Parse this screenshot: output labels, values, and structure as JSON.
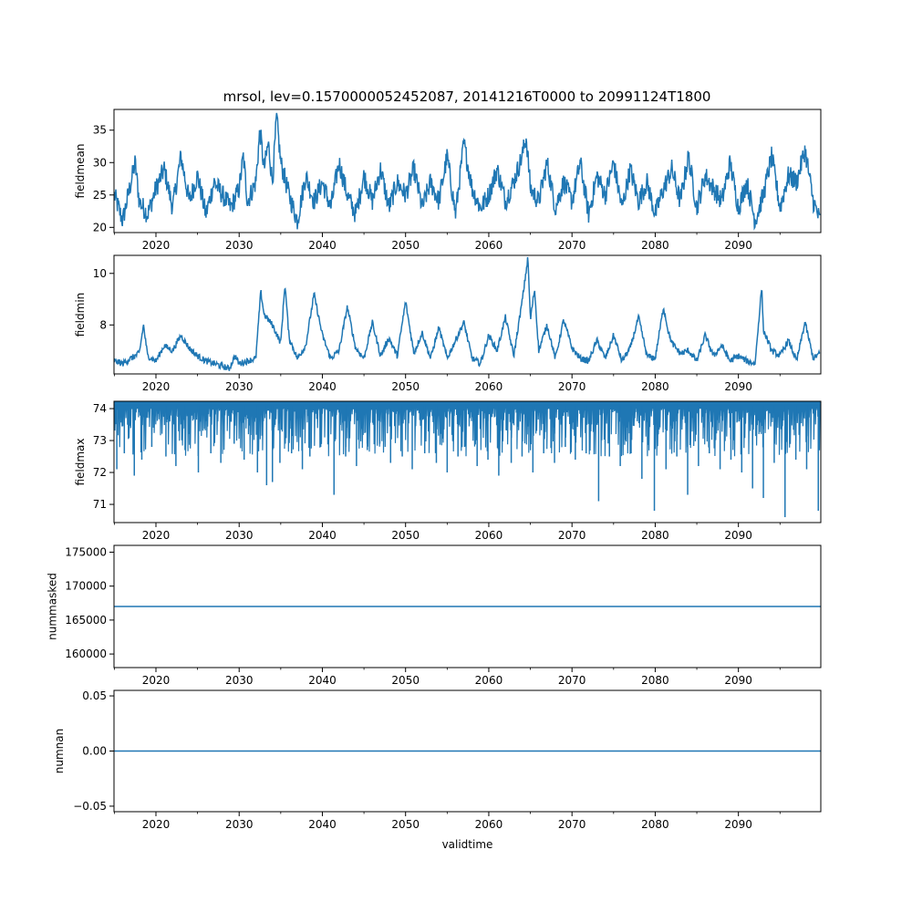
{
  "figure_title": "mrsol, lev=0.1570000052452087, 20141216T0000 to 20991124T1800",
  "colors": {
    "series": "#1f77b4",
    "axis": "#000000",
    "background": "#ffffff"
  },
  "chart_data": [
    {
      "type": "line",
      "title": "mrsol, lev=0.1570000052452087, 20141216T0000 to 20991124T1800",
      "ylabel": "fieldmean",
      "xlabel": "",
      "xlim": [
        2014.96,
        2099.9
      ],
      "ylim": [
        19.2,
        38.2
      ],
      "xticks": [
        2020,
        2030,
        2040,
        2050,
        2060,
        2070,
        2080,
        2090
      ],
      "xtick_labels": [
        "2020",
        "2030",
        "2040",
        "2050",
        "2060",
        "2070",
        "2080",
        "2090"
      ],
      "yticks": [
        20,
        25,
        30,
        35
      ],
      "ytick_labels": [
        "20",
        "25",
        "30",
        "35"
      ],
      "series": [
        {
          "name": "fieldmean",
          "x": [
            2015.0,
            2016.0,
            2017.0,
            2017.5,
            2018.0,
            2019.0,
            2020.0,
            2021.0,
            2022.0,
            2023.0,
            2024.0,
            2025.0,
            2026.0,
            2027.0,
            2028.0,
            2029.0,
            2030.0,
            2030.5,
            2031.0,
            2032.0,
            2032.5,
            2033.0,
            2033.5,
            2034.0,
            2034.5,
            2035.0,
            2036.0,
            2037.0,
            2038.0,
            2039.0,
            2040.0,
            2041.0,
            2042.0,
            2043.0,
            2044.0,
            2045.0,
            2046.0,
            2047.0,
            2048.0,
            2049.0,
            2050.0,
            2051.0,
            2052.0,
            2053.0,
            2054.0,
            2055.0,
            2056.0,
            2057.0,
            2058.0,
            2059.0,
            2060.0,
            2061.0,
            2062.0,
            2063.0,
            2064.0,
            2064.5,
            2065.0,
            2066.0,
            2067.0,
            2068.0,
            2069.0,
            2070.0,
            2071.0,
            2072.0,
            2073.0,
            2074.0,
            2075.0,
            2076.0,
            2077.0,
            2078.0,
            2079.0,
            2080.0,
            2081.0,
            2082.0,
            2083.0,
            2084.0,
            2085.0,
            2086.0,
            2087.0,
            2088.0,
            2089.0,
            2090.0,
            2091.0,
            2092.0,
            2093.0,
            2094.0,
            2095.0,
            2096.0,
            2097.0,
            2098.0,
            2099.0,
            2099.8
          ],
          "values": [
            25,
            21,
            27,
            30,
            24,
            22,
            26,
            29,
            23,
            31,
            24,
            28,
            22,
            27,
            25,
            23,
            26,
            31,
            24,
            27,
            35,
            29,
            33,
            27,
            37,
            30,
            25,
            21,
            28,
            24,
            27,
            23,
            30,
            25,
            22,
            28,
            24,
            29,
            23,
            27,
            25,
            29,
            23,
            27,
            24,
            31,
            22,
            33,
            26,
            23,
            25,
            29,
            24,
            27,
            31,
            34,
            26,
            24,
            30,
            23,
            27,
            24,
            30,
            22,
            28,
            25,
            30,
            23,
            29,
            24,
            27,
            22,
            26,
            29,
            24,
            31,
            23,
            28,
            26,
            24,
            30,
            23,
            27,
            21,
            25,
            31,
            23,
            28,
            27,
            32,
            24,
            21
          ]
        }
      ]
    },
    {
      "type": "line",
      "ylabel": "fieldmin",
      "xlabel": "",
      "xlim": [
        2014.96,
        2099.9
      ],
      "ylim": [
        6.1,
        10.7
      ],
      "xticks": [
        2020,
        2030,
        2040,
        2050,
        2060,
        2070,
        2080,
        2090
      ],
      "xtick_labels": [
        "2020",
        "2030",
        "2040",
        "2050",
        "2060",
        "2070",
        "2080",
        "2090"
      ],
      "yticks": [
        8,
        10
      ],
      "ytick_labels": [
        "8",
        "10"
      ],
      "series": [
        {
          "name": "fieldmin",
          "x": [
            2015.0,
            2016.0,
            2017.0,
            2018.0,
            2018.5,
            2019.0,
            2020.0,
            2021.0,
            2022.0,
            2023.0,
            2024.0,
            2025.0,
            2026.0,
            2027.0,
            2028.0,
            2028.8,
            2029.5,
            2030.0,
            2031.0,
            2032.0,
            2032.6,
            2033.0,
            2034.0,
            2035.0,
            2035.5,
            2036.0,
            2037.0,
            2038.0,
            2039.0,
            2040.0,
            2041.0,
            2042.0,
            2043.0,
            2044.0,
            2045.0,
            2046.0,
            2047.0,
            2048.0,
            2049.0,
            2050.0,
            2051.0,
            2052.0,
            2053.0,
            2054.0,
            2055.0,
            2056.0,
            2057.0,
            2058.0,
            2059.0,
            2060.0,
            2061.0,
            2062.0,
            2063.0,
            2064.0,
            2064.7,
            2065.0,
            2065.5,
            2066.0,
            2067.0,
            2068.0,
            2069.0,
            2070.0,
            2071.0,
            2072.0,
            2073.0,
            2074.0,
            2075.0,
            2076.0,
            2077.0,
            2078.0,
            2079.0,
            2080.0,
            2081.0,
            2081.6,
            2082.0,
            2083.0,
            2084.0,
            2085.0,
            2086.0,
            2087.0,
            2088.0,
            2089.0,
            2090.0,
            2091.0,
            2092.0,
            2092.8,
            2093.0,
            2094.0,
            2095.0,
            2096.0,
            2097.0,
            2098.0,
            2099.0,
            2099.8
          ],
          "values": [
            6.6,
            6.5,
            6.7,
            6.9,
            8.0,
            6.8,
            6.6,
            7.2,
            7.0,
            7.6,
            7.1,
            6.8,
            6.6,
            6.5,
            6.4,
            6.3,
            6.8,
            6.5,
            6.6,
            6.7,
            9.3,
            8.4,
            8.0,
            7.3,
            9.6,
            7.5,
            6.7,
            7.2,
            9.2,
            7.6,
            6.7,
            7.0,
            8.7,
            7.1,
            6.7,
            8.1,
            6.8,
            7.5,
            6.8,
            8.9,
            6.9,
            7.7,
            6.7,
            7.9,
            6.7,
            7.4,
            8.1,
            6.7,
            6.5,
            7.6,
            7.0,
            8.3,
            6.8,
            8.9,
            10.6,
            8.2,
            9.4,
            7.0,
            8.0,
            6.7,
            8.2,
            7.1,
            6.7,
            6.6,
            7.4,
            6.7,
            7.6,
            6.6,
            7.1,
            8.3,
            6.8,
            6.7,
            8.7,
            7.7,
            7.3,
            6.9,
            7.0,
            6.6,
            7.6,
            6.8,
            7.2,
            6.6,
            6.8,
            6.6,
            6.5,
            9.5,
            7.8,
            7.0,
            6.8,
            7.4,
            6.6,
            8.1,
            6.7,
            6.9
          ]
        }
      ]
    },
    {
      "type": "line",
      "ylabel": "fieldmax",
      "xlabel": "",
      "xlim": [
        2014.96,
        2099.9
      ],
      "ylim": [
        70.43,
        74.23
      ],
      "xticks": [
        2020,
        2030,
        2040,
        2050,
        2060,
        2070,
        2080,
        2090
      ],
      "xtick_labels": [
        "2020",
        "2030",
        "2040",
        "2050",
        "2060",
        "2070",
        "2080",
        "2090"
      ],
      "yticks": [
        71,
        72,
        73,
        74
      ],
      "ytick_labels": [
        "71",
        "72",
        "73",
        "74"
      ],
      "baseline": 74.2,
      "series": [
        {
          "name": "fieldmax",
          "x": [
            2015.3,
            2016.2,
            2017.4,
            2018.3,
            2019.5,
            2021.2,
            2022.4,
            2023.5,
            2025.1,
            2026.6,
            2027.8,
            2029.4,
            2030.6,
            2032.2,
            2033.3,
            2034.0,
            2034.9,
            2036.3,
            2037.6,
            2038.5,
            2039.8,
            2041.4,
            2042.8,
            2044.1,
            2045.4,
            2046.9,
            2048.2,
            2049.6,
            2050.8,
            2052.3,
            2053.7,
            2055.0,
            2056.3,
            2057.1,
            2058.6,
            2059.9,
            2061.2,
            2062.7,
            2064.0,
            2065.3,
            2066.6,
            2067.9,
            2069.2,
            2070.4,
            2071.7,
            2073.2,
            2074.5,
            2075.8,
            2077.1,
            2078.4,
            2079.9,
            2081.3,
            2082.6,
            2083.9,
            2085.2,
            2086.5,
            2087.8,
            2089.1,
            2090.4,
            2091.7,
            2093.0,
            2094.3,
            2095.6,
            2096.9,
            2098.2,
            2099.6
          ],
          "values": [
            72.1,
            72.6,
            71.9,
            72.4,
            72.8,
            72.5,
            72.2,
            72.7,
            72.0,
            72.6,
            72.3,
            72.9,
            72.4,
            72.0,
            71.6,
            71.7,
            72.3,
            72.6,
            72.1,
            72.5,
            72.8,
            71.3,
            72.5,
            72.2,
            72.7,
            72.9,
            72.3,
            72.5,
            72.1,
            72.6,
            72.3,
            72.0,
            72.5,
            72.8,
            72.2,
            72.4,
            71.9,
            72.3,
            72.5,
            72.0,
            72.6,
            72.3,
            72.8,
            72.4,
            72.6,
            71.1,
            72.5,
            72.2,
            72.6,
            71.8,
            70.8,
            72.1,
            72.5,
            71.3,
            72.2,
            72.6,
            72.1,
            72.4,
            72.0,
            71.5,
            71.2,
            72.3,
            70.6,
            72.4,
            72.1,
            70.8
          ]
        }
      ]
    },
    {
      "type": "line",
      "ylabel": "nummasked",
      "xlabel": "",
      "xlim": [
        2014.96,
        2099.9
      ],
      "ylim": [
        158000,
        176000
      ],
      "xticks": [
        2020,
        2030,
        2040,
        2050,
        2060,
        2070,
        2080,
        2090
      ],
      "xtick_labels": [
        "2020",
        "2030",
        "2040",
        "2050",
        "2060",
        "2070",
        "2080",
        "2090"
      ],
      "yticks": [
        160000,
        165000,
        170000,
        175000
      ],
      "ytick_labels": [
        "160000",
        "165000",
        "170000",
        "175000"
      ],
      "series": [
        {
          "name": "nummasked",
          "x": [
            2014.96,
            2099.9
          ],
          "values": [
            167000,
            167000
          ]
        }
      ]
    },
    {
      "type": "line",
      "ylabel": "numnan",
      "xlabel": "validtime",
      "xlim": [
        2014.96,
        2099.9
      ],
      "ylim": [
        -0.055,
        0.055
      ],
      "xticks": [
        2020,
        2030,
        2040,
        2050,
        2060,
        2070,
        2080,
        2090
      ],
      "xtick_labels": [
        "2020",
        "2030",
        "2040",
        "2050",
        "2060",
        "2070",
        "2080",
        "2090"
      ],
      "yticks": [
        -0.05,
        0.0,
        0.05
      ],
      "ytick_labels": [
        "−0.05",
        "0.00",
        "0.05"
      ],
      "series": [
        {
          "name": "numnan",
          "x": [
            2014.96,
            2099.9
          ],
          "values": [
            0,
            0
          ]
        }
      ]
    }
  ]
}
